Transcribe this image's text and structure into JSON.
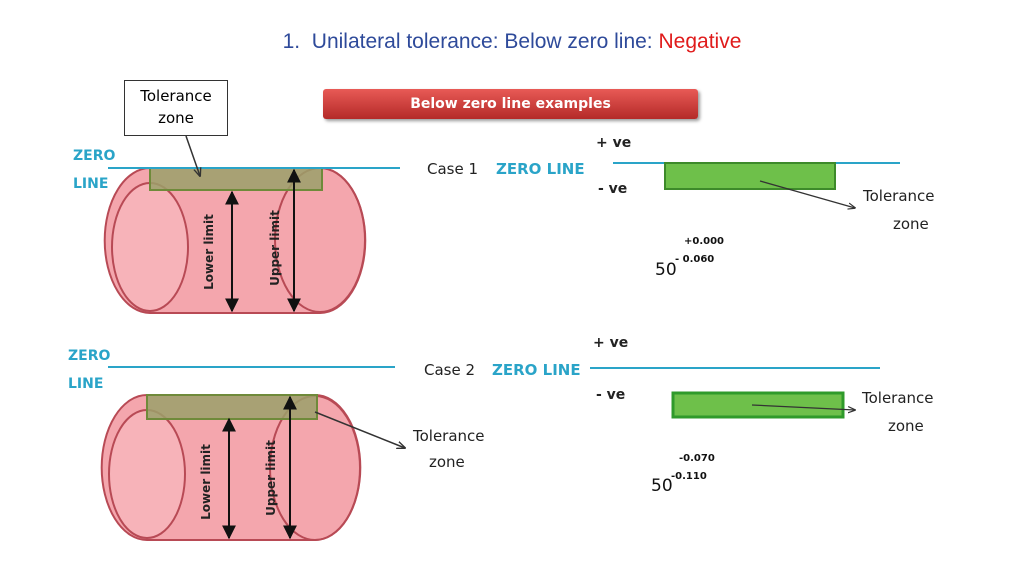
{
  "heading": {
    "number": "1.",
    "prefix": "Unilateral tolerance: Below zero line:",
    "emphasis": "Negative"
  },
  "banner": "Below zero line examples",
  "colors": {
    "heading": "#2e4a9a",
    "emphasis": "#e01b1b",
    "zero_line": "#2aa4c8",
    "cylinder_fill": "#f4a6ad",
    "cylinder_stroke": "#b84a55",
    "tolerance_band": "#9aa06a",
    "tolerance_green": "#6ec04a"
  },
  "diagram1": {
    "zero_label_1": "ZERO",
    "zero_label_2": "LINE",
    "box_line1": "Tolerance",
    "box_line2": "zone",
    "lower_limit": "Lower limit",
    "upper_limit": "Upper limit"
  },
  "diagram2": {
    "zero_label_1": "ZERO",
    "zero_label_2": "LINE",
    "tolerance_line1": "Tolerance",
    "tolerance_line2": "zone",
    "lower_limit": "Lower limit",
    "upper_limit": "Upper limit"
  },
  "case1": {
    "case_label": "Case 1",
    "zero_line": "ZERO LINE",
    "plus": "+ ve",
    "minus": "- ve",
    "zone_line1": "Tolerance",
    "zone_line2": "zone",
    "base": "50",
    "upper_dev": "+0.000",
    "lower_dev": "- 0.060"
  },
  "case2": {
    "case_label": "Case 2",
    "zero_line": "ZERO LINE",
    "plus": "+ ve",
    "minus": "- ve",
    "zone_line1": "Tolerance",
    "zone_line2": "zone",
    "base": "50",
    "upper_dev": "-0.070",
    "lower_dev": "-0.110"
  }
}
